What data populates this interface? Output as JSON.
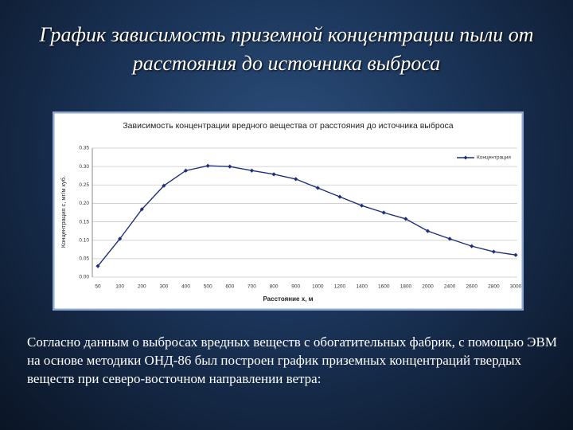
{
  "slide_title": "График зависимость приземной концентрации пыли от расстояния до источника выброса",
  "chart_data": {
    "type": "line",
    "title": "Зависимость концентрации вредного вещества от расстояния до источника выброса",
    "x_label": "Расстояние х, м",
    "y_label": "Концентрация с, мг/м куб.",
    "categories": [
      "50",
      "100",
      "200",
      "300",
      "400",
      "500",
      "600",
      "700",
      "800",
      "900",
      "1000",
      "1200",
      "1400",
      "1600",
      "1800",
      "2000",
      "2400",
      "2600",
      "2800",
      "3000"
    ],
    "series": [
      {
        "name": "Концентрация",
        "color": "#1f2f7a",
        "values": [
          0.03,
          0.104,
          0.184,
          0.248,
          0.289,
          0.302,
          0.3,
          0.289,
          0.279,
          0.266,
          0.242,
          0.218,
          0.194,
          0.175,
          0.158,
          0.125,
          0.104,
          0.084,
          0.069,
          0.06
        ]
      }
    ],
    "ylim": [
      0,
      0.35
    ],
    "yticks": [
      {
        "value": 0,
        "label": "0.00"
      },
      {
        "value": 0.05,
        "label": "0.05"
      },
      {
        "value": 0.1,
        "label": "0.10"
      },
      {
        "value": 0.15,
        "label": "0.15"
      },
      {
        "value": 0.2,
        "label": "0.20"
      },
      {
        "value": 0.25,
        "label": "0.25"
      },
      {
        "value": 0.3,
        "label": "0.30"
      },
      {
        "value": 0.35,
        "label": "0.35"
      }
    ],
    "grid": true,
    "legend": "top-right"
  },
  "body_text": "Согласно данным о выбросах вредных веществ с обогатительных фабрик, с помощью ЭВМ на основе методики ОНД-86 был построен график приземных концентраций твердых веществ при северо-восточном направлении ветра:"
}
